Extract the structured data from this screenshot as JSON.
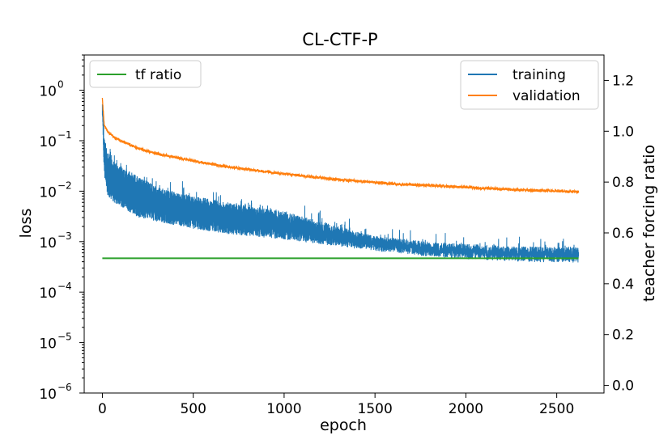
{
  "chart_data": {
    "type": "line",
    "title": "CL-CTF-P",
    "xlabel": "epoch",
    "ylabel": "loss",
    "y2label": "teacher forcing ratio",
    "xlim": [
      -100,
      2760
    ],
    "ylim": [
      1e-06,
      5.0
    ],
    "yscale": "log",
    "y2lim": [
      -0.03,
      1.3
    ],
    "grid": false,
    "x_ticks": [
      0,
      500,
      1000,
      1500,
      2000,
      2500
    ],
    "x_tick_labels": [
      "0",
      "500",
      "1000",
      "1500",
      "2000",
      "2500"
    ],
    "y_ticks": [
      1e-06,
      1e-05,
      0.0001,
      0.001,
      0.01,
      0.1,
      1
    ],
    "y_tick_mantissa": [
      "10",
      "10",
      "10",
      "10",
      "10",
      "10",
      "10"
    ],
    "y_tick_exponents": [
      "−6",
      "−5",
      "−4",
      "−3",
      "−2",
      "−1",
      "0"
    ],
    "y2_ticks": [
      0.0,
      0.2,
      0.4,
      0.6,
      0.8,
      1.0,
      1.2
    ],
    "y2_tick_labels": [
      "0.0",
      "0.2",
      "0.4",
      "0.6",
      "0.8",
      "1.0",
      "1.2"
    ],
    "series": [
      {
        "name": "training",
        "axis": "left",
        "color": "#1f77b4",
        "band": true,
        "x": [
          0,
          10,
          30,
          60,
          100,
          200,
          300,
          500,
          700,
          1000,
          1300,
          1500,
          1800,
          2000,
          2300,
          2620
        ],
        "upper": [
          0.7,
          0.12,
          0.06,
          0.04,
          0.03,
          0.02,
          0.012,
          0.008,
          0.006,
          0.004,
          0.002,
          0.0013,
          0.001,
          0.0009,
          0.0008,
          0.0008
        ],
        "lower": [
          0.3,
          0.02,
          0.008,
          0.006,
          0.005,
          0.003,
          0.0025,
          0.0018,
          0.0014,
          0.0011,
          0.0008,
          0.00065,
          0.0005,
          0.00045,
          0.0004,
          0.00038
        ]
      },
      {
        "name": "validation",
        "axis": "left",
        "color": "#ff7f0e",
        "x": [
          0,
          10,
          30,
          60,
          100,
          200,
          300,
          500,
          700,
          1000,
          1300,
          1600,
          2000,
          2300,
          2620
        ],
        "values": [
          0.7,
          0.2,
          0.15,
          0.12,
          0.1,
          0.07,
          0.055,
          0.04,
          0.03,
          0.022,
          0.017,
          0.014,
          0.012,
          0.0105,
          0.0098
        ]
      },
      {
        "name": "tf ratio",
        "axis": "right",
        "color": "#2ca02c",
        "x": [
          0,
          2620
        ],
        "values": [
          0.5,
          0.5
        ]
      }
    ],
    "legend_left": {
      "placement": "upper left",
      "entries": [
        "tf ratio"
      ]
    },
    "legend_right": {
      "placement": "upper right",
      "entries": [
        "training",
        "validation"
      ]
    }
  }
}
